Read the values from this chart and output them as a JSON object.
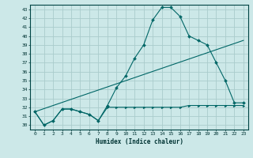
{
  "xlabel": "Humidex (Indice chaleur)",
  "xlim": [
    -0.5,
    23.5
  ],
  "ylim": [
    29.5,
    43.5
  ],
  "yticks": [
    30,
    31,
    32,
    33,
    34,
    35,
    36,
    37,
    38,
    39,
    40,
    41,
    42,
    43
  ],
  "xticks": [
    0,
    1,
    2,
    3,
    4,
    5,
    6,
    7,
    8,
    9,
    10,
    11,
    12,
    13,
    14,
    15,
    16,
    17,
    18,
    19,
    20,
    21,
    22,
    23
  ],
  "bg_color": "#cce8e8",
  "grid_color": "#aacccc",
  "line_color": "#006666",
  "line1_x": [
    0,
    1,
    2,
    3,
    4,
    5,
    6,
    7,
    8,
    9,
    10,
    11,
    12,
    13,
    14,
    15,
    16,
    17,
    18,
    19,
    20,
    21,
    22,
    23
  ],
  "line1_y": [
    31.5,
    30.0,
    30.5,
    31.8,
    31.8,
    31.5,
    31.2,
    30.5,
    32.2,
    34.2,
    35.5,
    37.5,
    39.0,
    41.8,
    43.2,
    43.2,
    42.2,
    40.0,
    39.5,
    39.0,
    37.0,
    35.0,
    32.5,
    32.5
  ],
  "line2_x": [
    0,
    1,
    2,
    3,
    4,
    5,
    6,
    7,
    8,
    9,
    10,
    11,
    12,
    13,
    14,
    15,
    16,
    17,
    18,
    19,
    20,
    21,
    22,
    23
  ],
  "line2_y": [
    31.5,
    30.0,
    30.5,
    31.8,
    31.8,
    31.5,
    31.2,
    30.5,
    32.0,
    32.0,
    32.0,
    32.0,
    32.0,
    32.0,
    32.0,
    32.0,
    32.0,
    32.2,
    32.2,
    32.2,
    32.2,
    32.2,
    32.2,
    32.2
  ],
  "line3_x": [
    0,
    23
  ],
  "line3_y": [
    31.5,
    39.5
  ]
}
